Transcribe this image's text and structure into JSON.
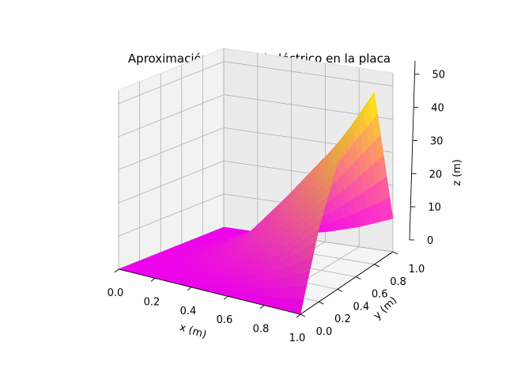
{
  "chart_data": {
    "type": "surface3d",
    "title": "Aproximación potencial eléctrico en la placa",
    "xlabel": "x (m)",
    "ylabel": "y (m)",
    "zlabel": "z (m)",
    "xlim": [
      0,
      1
    ],
    "ylim": [
      0,
      1
    ],
    "zlim": [
      0,
      54
    ],
    "xticks": [
      "0.0",
      "0.2",
      "0.4",
      "0.6",
      "0.8",
      "1.0"
    ],
    "yticks": [
      "0.0",
      "0.2",
      "0.4",
      "0.6",
      "0.8",
      "1.0"
    ],
    "zticks": [
      "0",
      "10",
      "20",
      "30",
      "40",
      "50"
    ],
    "grid": true,
    "colormap": [
      "#ff00ff",
      "#ffff00"
    ],
    "surface": {
      "x": [
        0,
        0.2,
        0.4,
        0.6,
        0.8,
        1.0
      ],
      "y": [
        0,
        0.2,
        0.4,
        0.6,
        0.8,
        1.0
      ],
      "z": [
        [
          0,
          0,
          0,
          0,
          0,
          0
        ],
        [
          0,
          1,
          3,
          6,
          12,
          22
        ],
        [
          0,
          2,
          6,
          14,
          25,
          38
        ],
        [
          0,
          2,
          8,
          20,
          33,
          45
        ],
        [
          0,
          1,
          6,
          18,
          35,
          52
        ],
        [
          0,
          0,
          1,
          3,
          6,
          10
        ]
      ]
    }
  }
}
